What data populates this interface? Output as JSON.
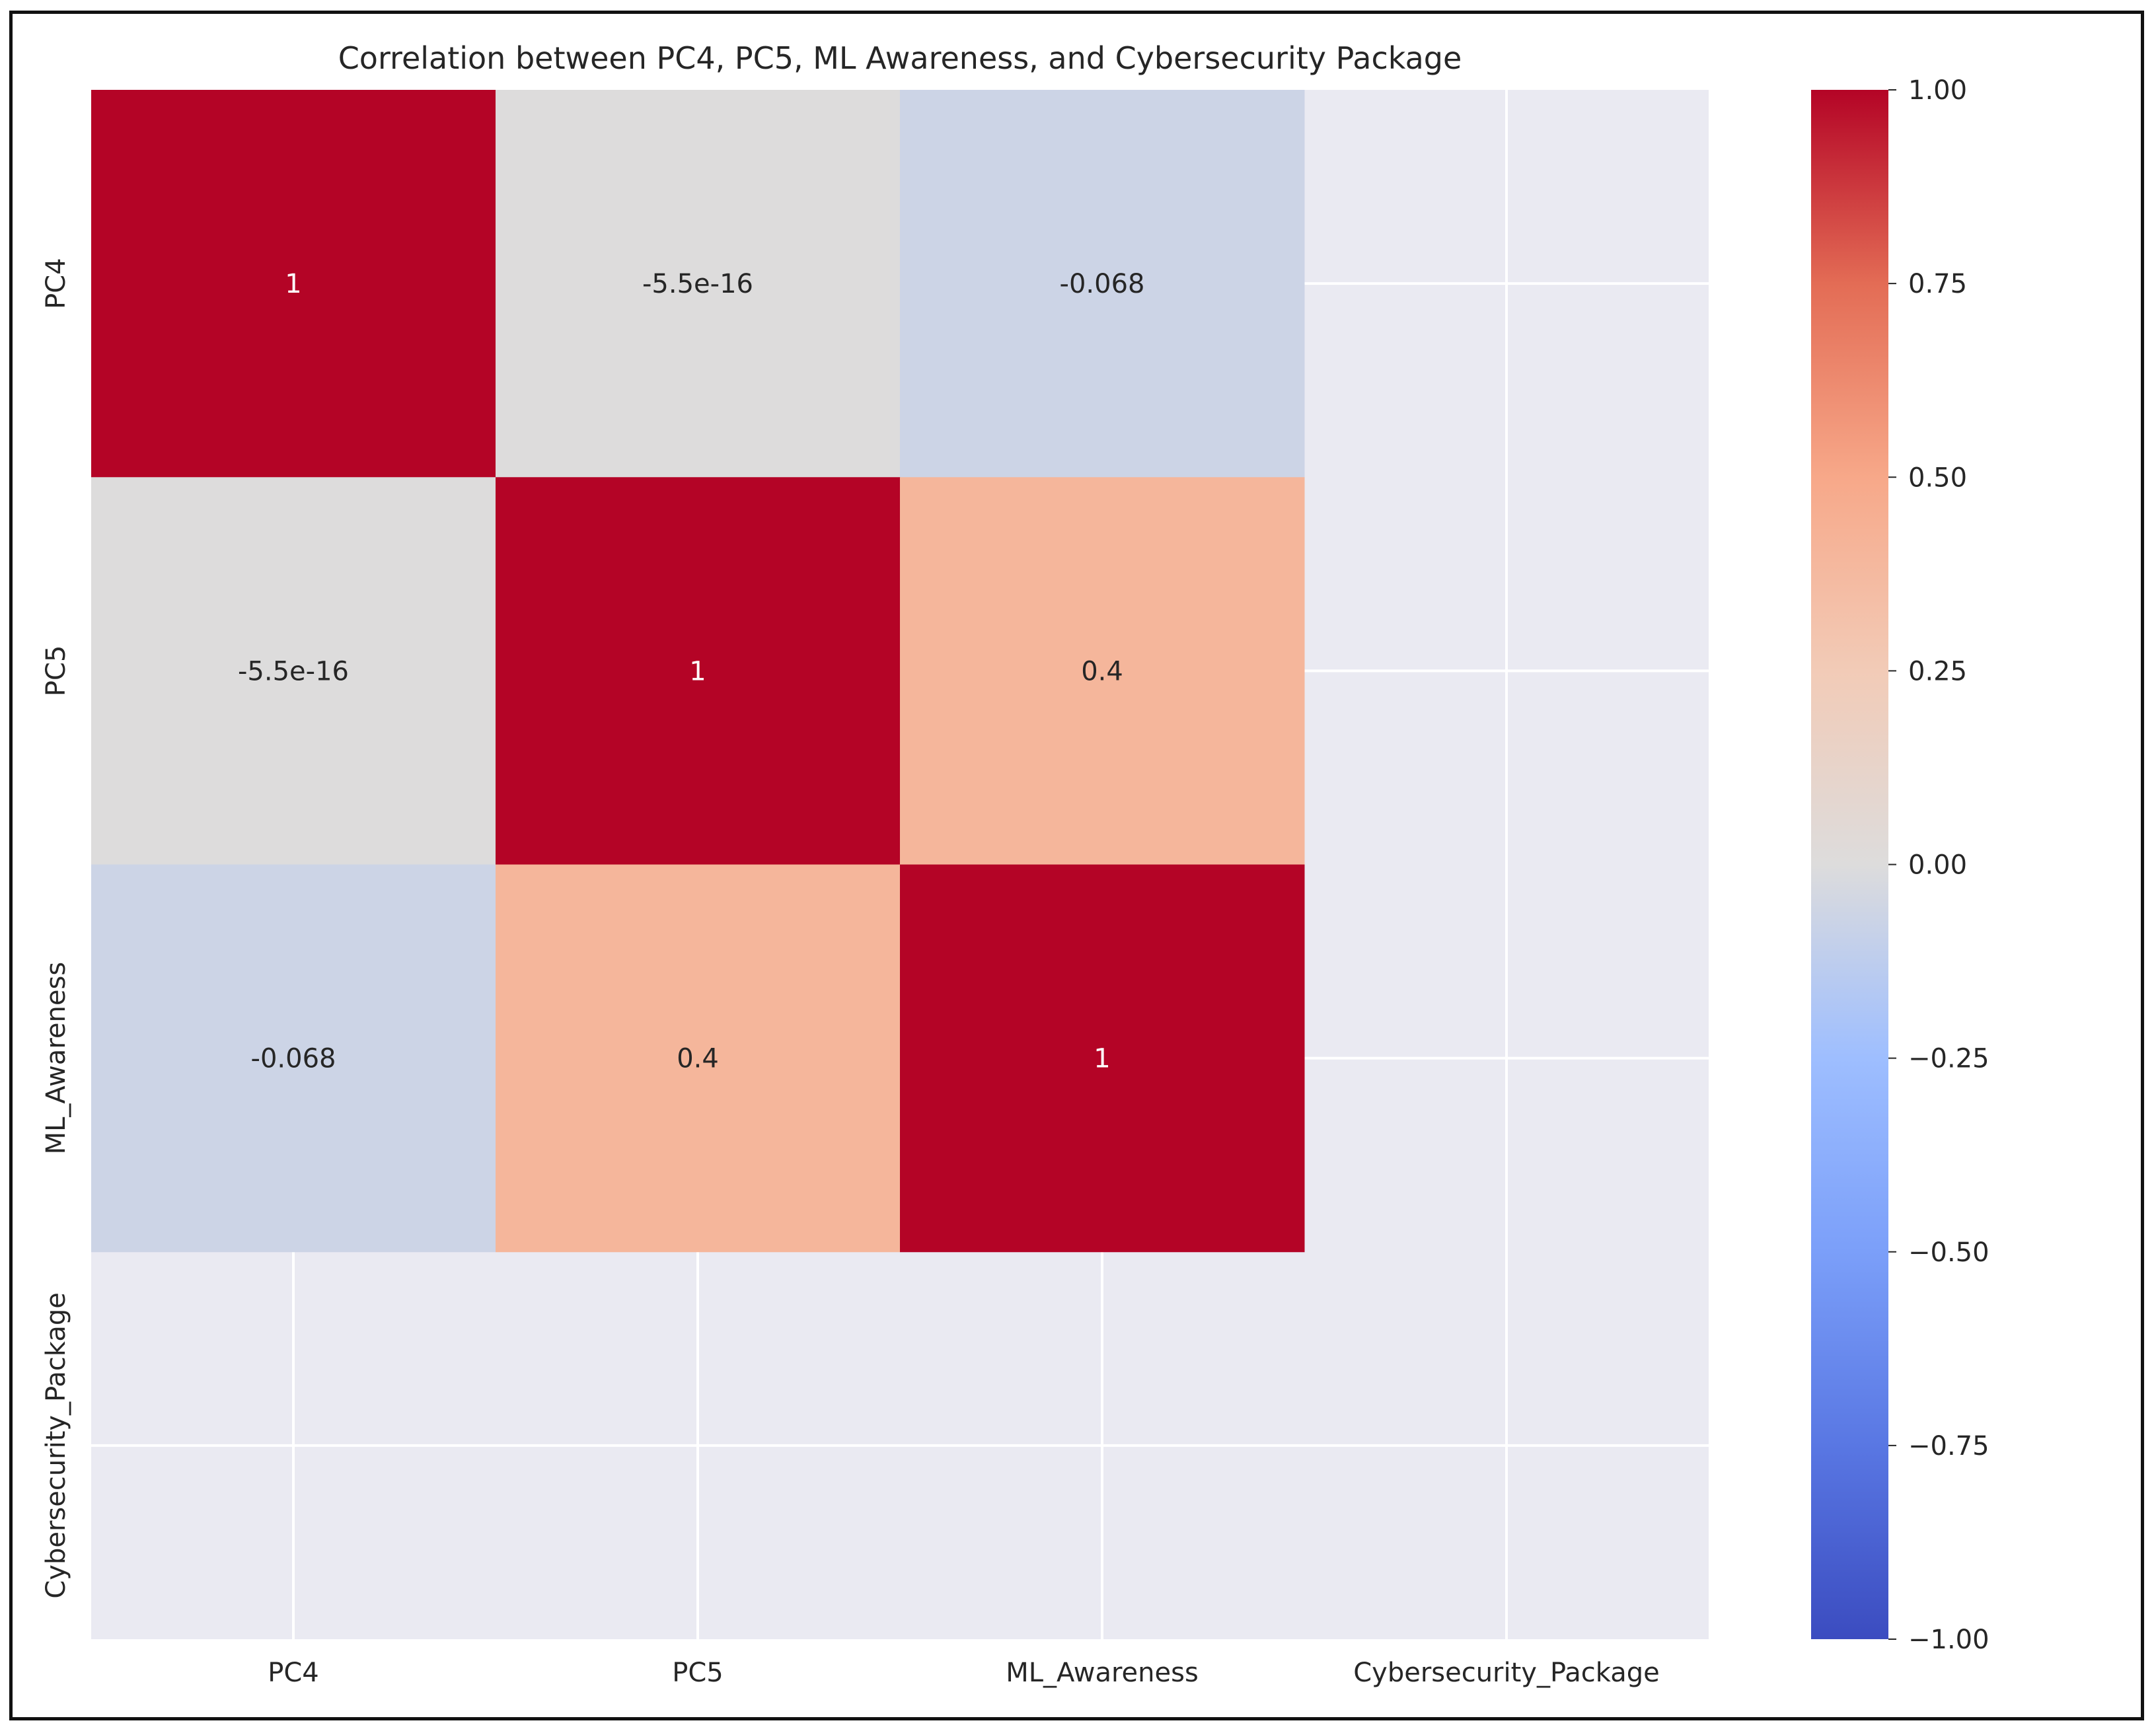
{
  "chart_data": {
    "type": "heatmap",
    "title": "Correlation between PC4, PC5, ML Awareness, and Cybersecurity Package",
    "x_categories": [
      "PC4",
      "PC5",
      "ML_Awareness",
      "Cybersecurity_Package"
    ],
    "y_categories": [
      "PC4",
      "PC5",
      "ML_Awareness",
      "Cybersecurity_Package"
    ],
    "values": [
      [
        1,
        -5.5e-16,
        -0.068,
        null
      ],
      [
        -5.5e-16,
        1,
        0.4,
        null
      ],
      [
        -0.068,
        0.4,
        1,
        null
      ],
      [
        null,
        null,
        null,
        null
      ]
    ],
    "annotations": [
      [
        "1",
        "-5.5e-16",
        "-0.068",
        ""
      ],
      [
        "-5.5e-16",
        "1",
        "0.4",
        ""
      ],
      [
        "-0.068",
        "0.4",
        "1",
        ""
      ],
      [
        "",
        "",
        "",
        ""
      ]
    ],
    "colormap": "coolwarm",
    "vmin": -1,
    "vmax": 1,
    "colorbar_ticks": [
      "1.00",
      "0.75",
      "0.50",
      "0.25",
      "0.00",
      "−0.25",
      "−0.50",
      "−0.75",
      "−1.00"
    ],
    "missing_color": "#eaeaf2",
    "grid": true
  }
}
